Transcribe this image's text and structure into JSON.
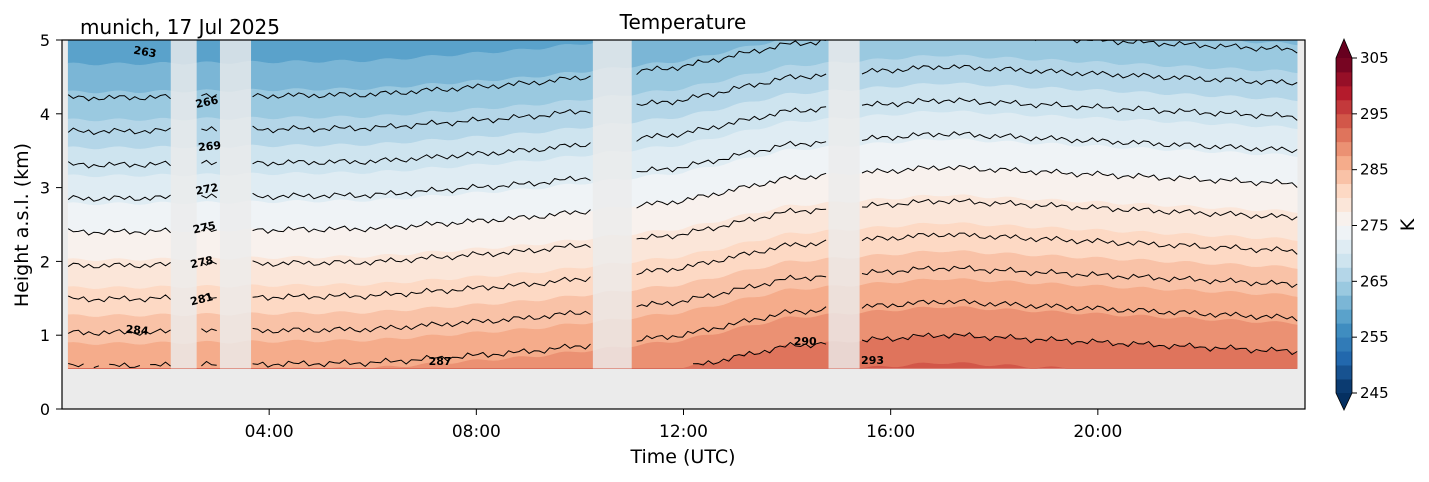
{
  "header": {
    "location_date": "munich, 17 Jul 2025",
    "title": "Temperature"
  },
  "chart_data": {
    "type": "heatmap",
    "title": "Temperature",
    "xlabel": "Time (UTC)",
    "ylabel": "Height a.s.l. (km)",
    "xlim_hours": [
      0,
      24
    ],
    "ylim_km": [
      0,
      5
    ],
    "x_ticks": [
      {
        "hour": 4,
        "label": "04:00"
      },
      {
        "hour": 8,
        "label": "08:00"
      },
      {
        "hour": 12,
        "label": "12:00"
      },
      {
        "hour": 16,
        "label": "16:00"
      },
      {
        "hour": 20,
        "label": "20:00"
      }
    ],
    "y_ticks": [
      {
        "value": 0,
        "label": "0"
      },
      {
        "value": 1,
        "label": "1"
      },
      {
        "value": 2,
        "label": "2"
      },
      {
        "value": 3,
        "label": "3"
      },
      {
        "value": 4,
        "label": "4"
      },
      {
        "value": 5,
        "label": "5"
      }
    ],
    "data_bottom_km": 0.55,
    "data_start_hour": 0.12,
    "data_end_hour": 23.85,
    "no_data_gaps_hours": [
      [
        2.1,
        2.6
      ],
      [
        3.05,
        3.65
      ],
      [
        10.25,
        11.0
      ],
      [
        14.8,
        15.4
      ]
    ],
    "colorbar": {
      "label": "K",
      "vmin": 245,
      "vmax": 305,
      "step": 2.5,
      "ticks": [
        "245",
        "255",
        "265",
        "275",
        "285",
        "295",
        "305"
      ],
      "extend": "both"
    },
    "temperature_profiles": [
      {
        "hour": 1,
        "surface_K": 287.2
      },
      {
        "hour": 6,
        "surface_K": 287.5
      },
      {
        "hour": 9,
        "surface_K": 288.5
      },
      {
        "hour": 12,
        "surface_K": 290
      },
      {
        "hour": 14,
        "surface_K": 292
      },
      {
        "hour": 17,
        "surface_K": 293
      },
      {
        "hour": 23.8,
        "surface_K": 291.5
      }
    ],
    "lapse_rate_K_per_km": 6.6,
    "contour_levels_K": [
      263,
      266,
      269,
      272,
      275,
      278,
      281,
      284,
      287,
      290,
      293
    ],
    "contour_labels": [
      {
        "text": "263",
        "hour": 1.6,
        "km": 4.83,
        "angle": 10
      },
      {
        "text": "266",
        "hour": 2.8,
        "km": 4.15,
        "angle": -12
      },
      {
        "text": "269",
        "hour": 2.85,
        "km": 3.55,
        "angle": -6
      },
      {
        "text": "272",
        "hour": 2.8,
        "km": 2.97,
        "angle": -10
      },
      {
        "text": "275",
        "hour": 2.75,
        "km": 2.45,
        "angle": -12
      },
      {
        "text": "278",
        "hour": 2.7,
        "km": 1.98,
        "angle": -12
      },
      {
        "text": "281",
        "hour": 2.7,
        "km": 1.48,
        "angle": -14
      },
      {
        "text": "284",
        "hour": 1.45,
        "km": 1.06,
        "angle": 5
      },
      {
        "text": "287",
        "hour": 7.3,
        "km": 0.64,
        "angle": 0
      },
      {
        "text": "290",
        "hour": 14.35,
        "km": 0.91,
        "angle": 0
      },
      {
        "text": "293",
        "hour": 15.65,
        "km": 0.65,
        "angle": 0
      }
    ]
  }
}
